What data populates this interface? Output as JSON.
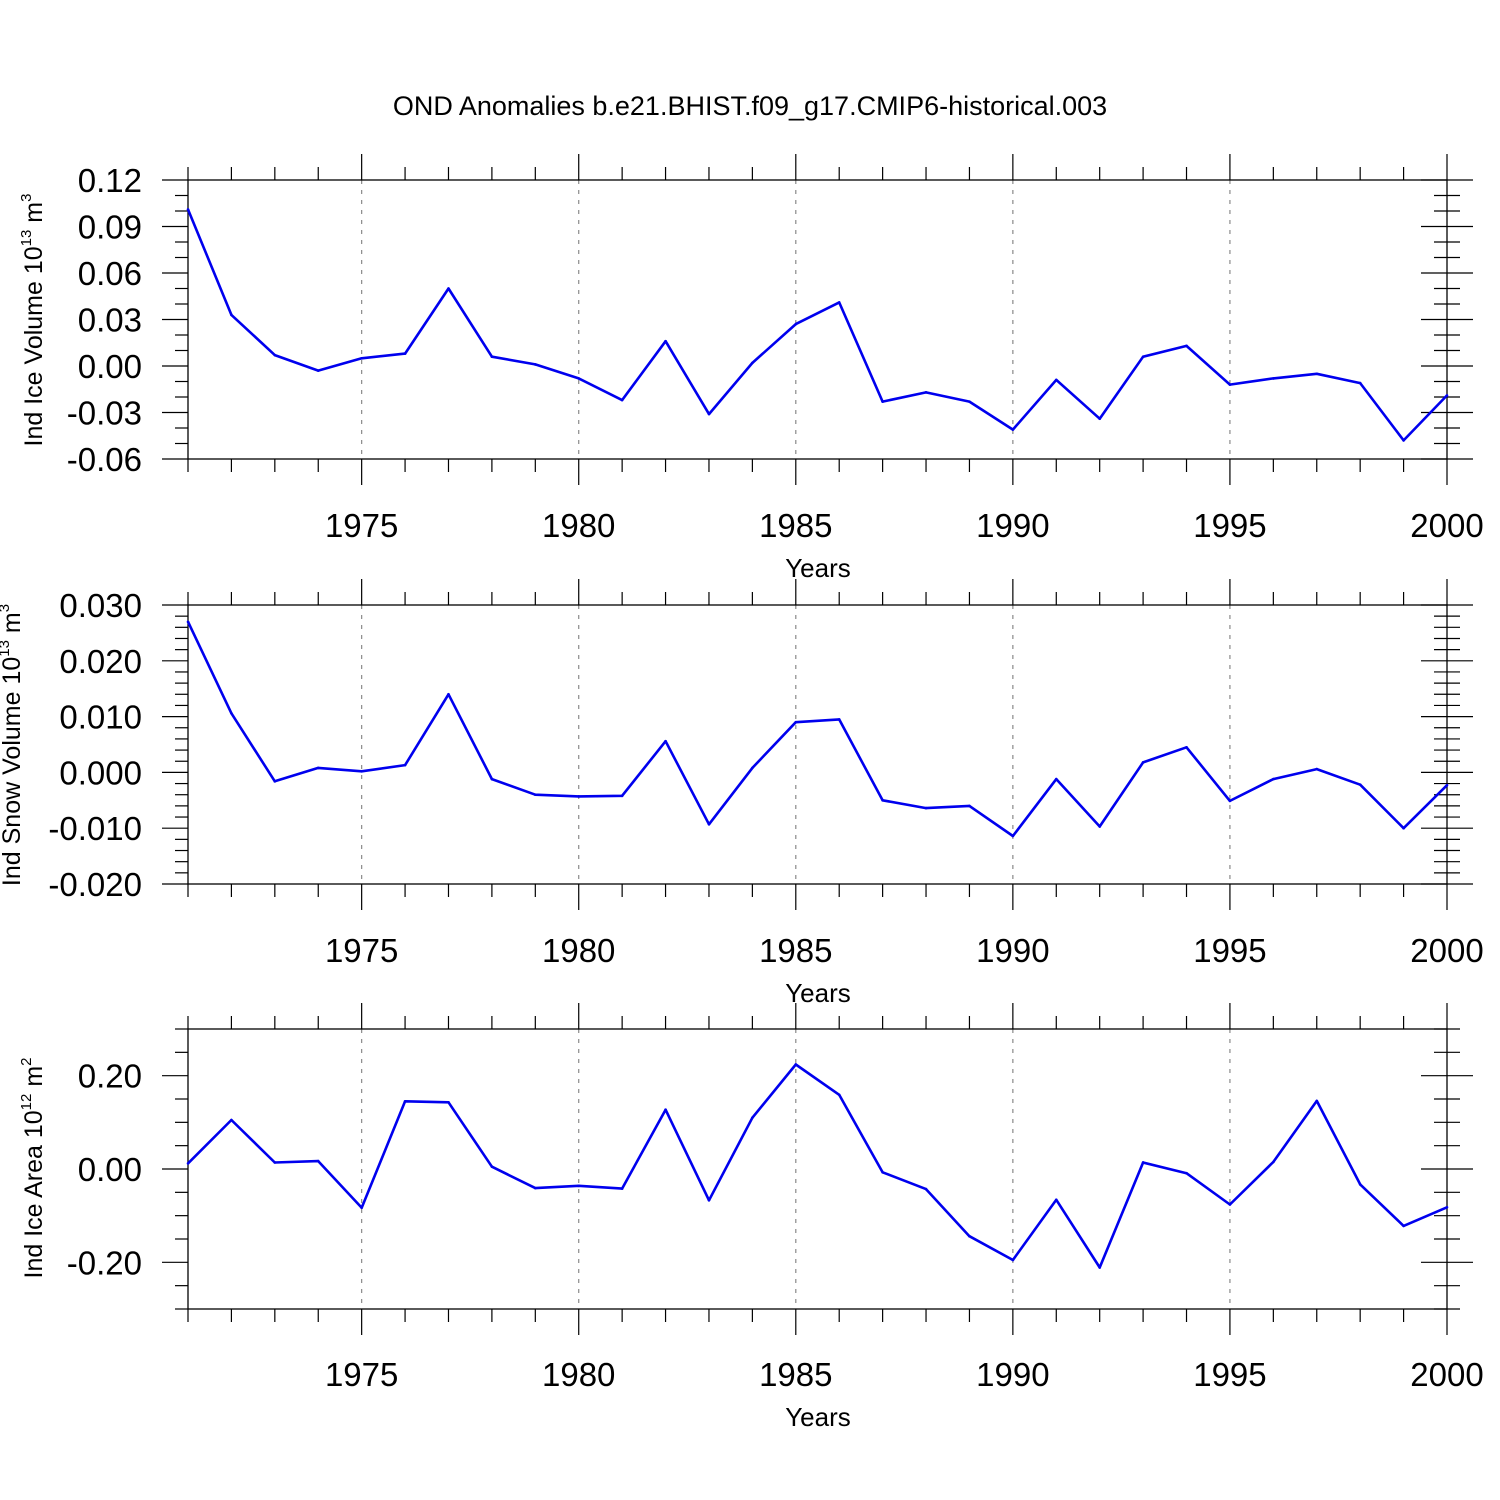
{
  "title": "OND Anomalies b.e21.BHIST.f09_g17.CMIP6-historical.003",
  "chart_data": [
    {
      "type": "line",
      "ylabel": {
        "text": "Ind Ice Volume 10",
        "exponent": "13",
        "unit": " m",
        "unit_exponent": "3"
      },
      "xlabel": "Years",
      "xlim": [
        1971,
        2000
      ],
      "ylim": [
        -0.06,
        0.12
      ],
      "yticks": [
        "0.12",
        "0.09",
        "0.06",
        "0.03",
        "0.00",
        "-0.03",
        "-0.06"
      ],
      "ytick_values": [
        0.12,
        0.09,
        0.06,
        0.03,
        0.0,
        -0.03,
        -0.06
      ],
      "yminor_step": 0.01,
      "xticks": [
        "1975",
        "1980",
        "1985",
        "1990",
        "1995",
        "2000"
      ],
      "xtick_values": [
        1975,
        1980,
        1985,
        1990,
        1995,
        2000
      ],
      "grid": "vertical dashed at major x ticks",
      "line_color": "#0000ee",
      "series": [
        {
          "x": [
            1971,
            1972,
            1973,
            1974,
            1975,
            1976,
            1977,
            1978,
            1979,
            1980,
            1981,
            1982,
            1983,
            1984,
            1985,
            1986,
            1987,
            1988,
            1989,
            1990,
            1991,
            1992,
            1993,
            1994,
            1995,
            1996,
            1997,
            1998,
            1999,
            2000
          ],
          "values": [
            0.101,
            0.033,
            0.007,
            -0.003,
            0.005,
            0.008,
            0.05,
            0.006,
            0.001,
            -0.008,
            -0.022,
            0.016,
            -0.031,
            0.002,
            0.027,
            0.041,
            -0.023,
            -0.017,
            -0.023,
            -0.041,
            -0.009,
            -0.034,
            0.006,
            0.013,
            -0.012,
            -0.008,
            -0.005,
            -0.011,
            -0.048,
            -0.019
          ]
        }
      ]
    },
    {
      "type": "line",
      "ylabel": {
        "text": "Ind Snow Volume 10",
        "exponent": "13",
        "unit": " m",
        "unit_exponent": "3"
      },
      "xlabel": "Years",
      "xlim": [
        1971,
        2000
      ],
      "ylim": [
        -0.02,
        0.03
      ],
      "yticks": [
        "0.030",
        "0.020",
        "0.010",
        "0.000",
        "-0.010",
        "-0.020"
      ],
      "ytick_values": [
        0.03,
        0.02,
        0.01,
        0.0,
        -0.01,
        -0.02
      ],
      "yminor_step": 0.002,
      "xticks": [
        "1975",
        "1980",
        "1985",
        "1990",
        "1995",
        "2000"
      ],
      "xtick_values": [
        1975,
        1980,
        1985,
        1990,
        1995,
        2000
      ],
      "grid": "vertical dashed at major x ticks",
      "line_color": "#0000ee",
      "series": [
        {
          "x": [
            1971,
            1972,
            1973,
            1974,
            1975,
            1976,
            1977,
            1978,
            1979,
            1980,
            1981,
            1982,
            1983,
            1984,
            1985,
            1986,
            1987,
            1988,
            1989,
            1990,
            1991,
            1992,
            1993,
            1994,
            1995,
            1996,
            1997,
            1998,
            1999,
            2000
          ],
          "values": [
            0.027,
            0.0106,
            -0.0016,
            0.0008,
            0.0002,
            0.0013,
            0.014,
            -0.0012,
            -0.004,
            -0.0043,
            -0.0042,
            0.0056,
            -0.0093,
            0.0008,
            0.009,
            0.0095,
            -0.005,
            -0.0064,
            -0.006,
            -0.0114,
            -0.0012,
            -0.0097,
            0.0018,
            0.0045,
            -0.0051,
            -0.0012,
            0.0006,
            -0.0022,
            -0.01,
            -0.0023
          ]
        }
      ]
    },
    {
      "type": "line",
      "ylabel": {
        "text": "Ind Ice Area 10",
        "exponent": "12",
        "unit": " m",
        "unit_exponent": "2"
      },
      "xlabel": "Years",
      "xlim": [
        1971,
        2000
      ],
      "ylim": [
        -0.3,
        0.3
      ],
      "yticks": [
        "0.20",
        "0.00",
        "-0.20"
      ],
      "ytick_values": [
        0.2,
        0.0,
        -0.2
      ],
      "yminor_step": 0.05,
      "xticks": [
        "1975",
        "1980",
        "1985",
        "1990",
        "1995",
        "2000"
      ],
      "xtick_values": [
        1975,
        1980,
        1985,
        1990,
        1995,
        2000
      ],
      "grid": "vertical dashed at major x ticks",
      "line_color": "#0000ee",
      "series": [
        {
          "x": [
            1971,
            1972,
            1973,
            1974,
            1975,
            1976,
            1977,
            1978,
            1979,
            1980,
            1981,
            1982,
            1983,
            1984,
            1985,
            1986,
            1987,
            1988,
            1989,
            1990,
            1991,
            1992,
            1993,
            1994,
            1995,
            1996,
            1997,
            1998,
            1999,
            2000
          ],
          "values": [
            0.012,
            0.105,
            0.014,
            0.017,
            -0.083,
            0.145,
            0.143,
            0.005,
            -0.041,
            -0.036,
            -0.042,
            0.127,
            -0.067,
            0.11,
            0.224,
            0.159,
            -0.007,
            -0.043,
            -0.144,
            -0.195,
            -0.066,
            -0.211,
            0.014,
            -0.009,
            -0.076,
            0.015,
            0.146,
            -0.033,
            -0.122,
            -0.082
          ]
        }
      ]
    }
  ]
}
